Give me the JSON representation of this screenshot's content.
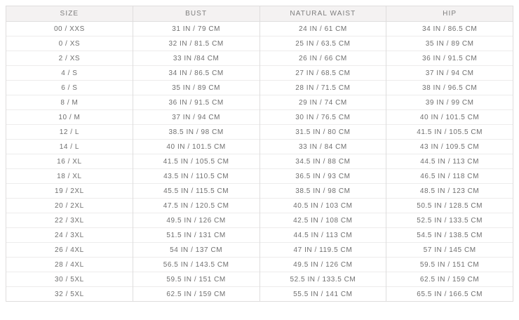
{
  "table": {
    "columns": [
      "SIZE",
      "BUST",
      "NATURAL WAIST",
      "HIP"
    ],
    "rows": [
      [
        "00 / XXS",
        "31 IN / 79 CM",
        "24 IN / 61 CM",
        "34 IN / 86.5 CM"
      ],
      [
        "0 / XS",
        "32 IN / 81.5 CM",
        "25 IN / 63.5 CM",
        "35 IN / 89 CM"
      ],
      [
        "2 / XS",
        "33 IN /84 CM",
        "26 IN / 66 CM",
        "36 IN / 91.5 CM"
      ],
      [
        "4 / S",
        "34 IN / 86.5 CM",
        "27 IN / 68.5 CM",
        "37 IN / 94 CM"
      ],
      [
        "6 / S",
        "35 IN / 89 CM",
        "28 IN / 71.5 CM",
        "38 IN / 96.5 CM"
      ],
      [
        "8 / M",
        "36 IN / 91.5 CM",
        "29 IN / 74 CM",
        "39 IN / 99 CM"
      ],
      [
        "10 / M",
        "37 IN / 94 CM",
        "30 IN / 76.5 CM",
        "40 IN / 101.5 CM"
      ],
      [
        "12 / L",
        "38.5 IN / 98 CM",
        "31.5 IN / 80 CM",
        "41.5 IN / 105.5 CM"
      ],
      [
        "14 / L",
        "40 IN / 101.5 CM",
        "33 IN / 84 CM",
        "43 IN / 109.5 CM"
      ],
      [
        "16 / XL",
        "41.5 IN / 105.5 CM",
        "34.5 IN / 88 CM",
        "44.5 IN / 113 CM"
      ],
      [
        "18 / XL",
        "43.5 IN / 110.5 CM",
        "36.5 IN / 93 CM",
        "46.5 IN / 118 CM"
      ],
      [
        "19 / 2XL",
        "45.5 IN / 115.5 CM",
        "38.5 IN / 98 CM",
        "48.5 IN / 123 CM"
      ],
      [
        "20 / 2XL",
        "47.5 IN / 120.5 CM",
        "40.5 IN / 103 CM",
        "50.5 IN / 128.5 CM"
      ],
      [
        "22 / 3XL",
        "49.5 IN / 126 CM",
        "42.5 IN / 108 CM",
        "52.5 IN / 133.5 CM"
      ],
      [
        "24 / 3XL",
        "51.5 IN / 131 CM",
        "44.5 IN / 113 CM",
        "54.5 IN / 138.5 CM"
      ],
      [
        "26 / 4XL",
        "54 IN / 137 CM",
        "47 IN / 119.5 CM",
        "57 IN / 145 CM"
      ],
      [
        "28 / 4XL",
        "56.5 IN / 143.5 CM",
        "49.5 IN / 126 CM",
        "59.5 IN / 151 CM"
      ],
      [
        "30 / 5XL",
        "59.5 IN / 151 CM",
        "52.5 IN / 133.5 CM",
        "62.5 IN / 159 CM"
      ],
      [
        "32 / 5XL",
        "62.5 IN / 159 CM",
        "55.5 IN / 141 CM",
        "65.5 IN / 166.5 CM"
      ]
    ]
  },
  "colors": {
    "header_bg": "#f4f2f2",
    "border": "#dfdddd",
    "row_border": "#edecec",
    "cell_text": "#6f6f6f",
    "header_text": "#7d7d7d",
    "page_bg": "#ffffff"
  }
}
